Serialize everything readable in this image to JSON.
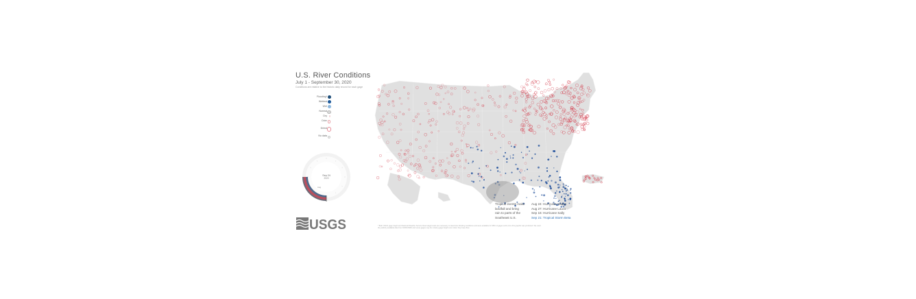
{
  "header": {
    "title": "U.S. River Conditions",
    "subtitle": "July 1 - September 30, 2020",
    "note": "Conditions are relative to the historic daily record for each gage"
  },
  "legend": {
    "items": [
      {
        "label": "Flooding*",
        "color": "#1f4e79",
        "size": 5
      },
      {
        "label": "Wettest",
        "color": "#1f5a9a",
        "size": 5
      },
      {
        "label": "Wet",
        "color": "#8fb9de",
        "size": 4.5
      },
      {
        "label": "Normal",
        "color": "#d9d9d9",
        "size": 3.5
      },
      {
        "label": "Dry",
        "color": "#f2d4d6",
        "size": 3
      },
      {
        "label": "Drier",
        "color": "#f4c2c6",
        "size": 3
      },
      {
        "label": "Driest",
        "color": "#ffffff",
        "size": 5
      },
      {
        "label": "No data",
        "color": "#eeeeee",
        "size": 2.5
      }
    ]
  },
  "dial": {
    "date_label": "Sep 24",
    "year_label": "2020",
    "month_label": "Aug"
  },
  "logo": {
    "text": "USGS"
  },
  "annotations": {
    "tropical": [
      "Tropical events make",
      "landfall and bring",
      "rain to parts of the",
      "Southeast U.S."
    ],
    "events": [
      "Aug 24: Hurricane Marco",
      "Aug 27: Hurricane Laura",
      "Sep 16: Hurricane Sally"
    ],
    "highlight_event": "Sep 21: Tropical Storm Beta"
  },
  "footnote": "* Both USGS gage height and National Weather Service flood stage levels are necessary to determine flooding conditions and were available for 38% of gages at the time this graphic was produced. We used the publicly available data from NWIS/NWS and some gages may be missing gage height even when they have flow.",
  "colors": {
    "dry": "#d33a4a",
    "wet": "#1f4e9a",
    "land": "#e0e0e0"
  }
}
